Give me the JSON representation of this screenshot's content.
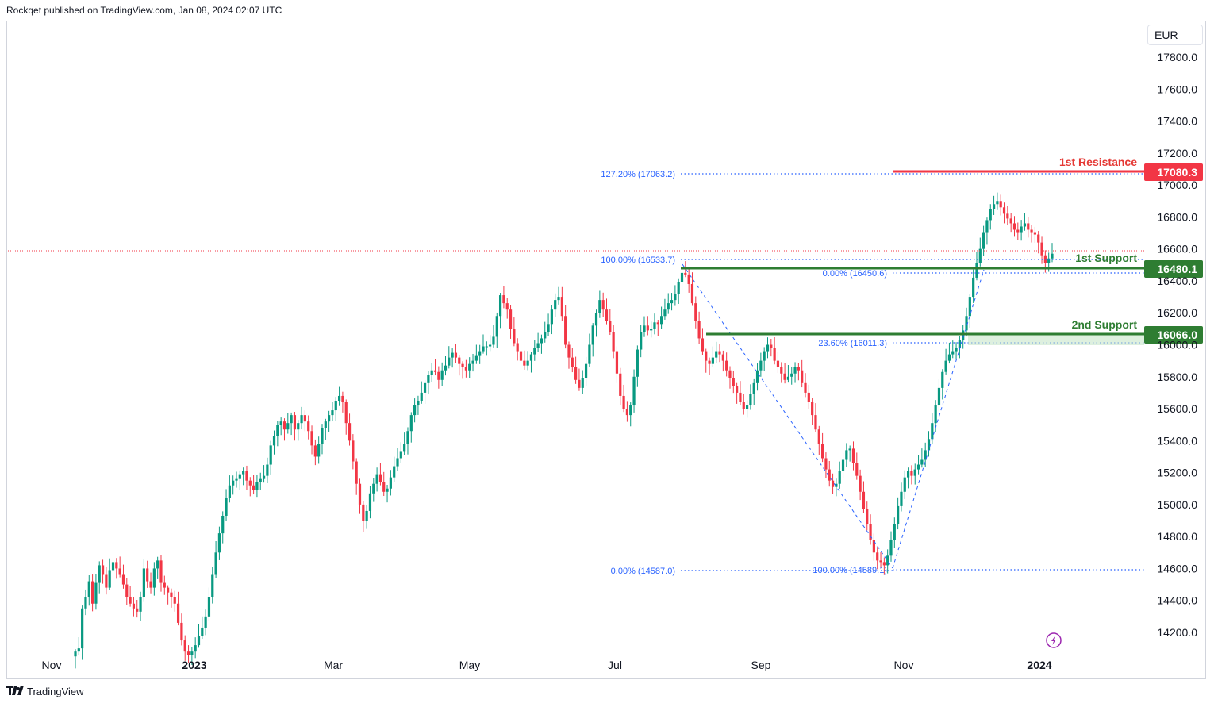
{
  "header": {
    "text": "Rockqet published on TradingView.com, Jan 08, 2024 02:07 UTC"
  },
  "footer": {
    "logo_text": "TradingView"
  },
  "currency": "EUR",
  "colors": {
    "up": "#089981",
    "down": "#f23645",
    "fib": "#2962ff",
    "resistance": "#f23645",
    "support": "#2e7d32"
  },
  "labels": {
    "resistance1": "1st Resistance",
    "resistance1_value": "17080.3",
    "support1": "1st Support",
    "support1_value": "16480.1",
    "support2": "2nd Support",
    "support2_value": "16066.0"
  },
  "fib_labels": {
    "f1": "127.20% (17063.2)",
    "f2": "100.00% (16533.7)",
    "f3": "0.00% (16450.6)",
    "f4": "23.60% (16011.3)",
    "f5": "0.00% (14587.0)",
    "f6": "100.00% (14589.1)"
  },
  "chart_data": {
    "type": "candlestick",
    "title": "",
    "xlabel": "",
    "ylabel": "",
    "ylim": [
      14050,
      17900
    ],
    "y_ticks": [
      "17800.0",
      "17600.0",
      "17400.0",
      "17200.0",
      "17000.0",
      "16800.0",
      "16600.0",
      "16400.0",
      "16200.0",
      "16000.0",
      "15800.0",
      "15600.0",
      "15400.0",
      "15200.0",
      "15000.0",
      "14800.0",
      "14600.0",
      "14400.0",
      "14200.0"
    ],
    "x_ticks": [
      "Nov",
      "2023",
      "Mar",
      "May",
      "Jul",
      "Sep",
      "Nov",
      "2024"
    ],
    "x_ticks_bold": [
      "2023",
      "2024"
    ],
    "horizontal_levels": [
      {
        "name": "1st Resistance",
        "value": 17080.3
      },
      {
        "name": "1st Support",
        "value": 16480.1
      },
      {
        "name": "2nd Support",
        "value": 16066.0
      }
    ],
    "fib_levels": [
      17063.2,
      16533.7,
      16450.6,
      16011.3,
      14587.0,
      14589.1
    ],
    "closes": [
      14080,
      14100,
      14350,
      14420,
      14520,
      14380,
      14510,
      14620,
      14560,
      14480,
      14590,
      14640,
      14600,
      14560,
      14500,
      14420,
      14380,
      14350,
      14330,
      14420,
      14600,
      14520,
      14480,
      14600,
      14650,
      14510,
      14480,
      14450,
      14420,
      14380,
      14260,
      14150,
      14080,
      14060,
      14080,
      14120,
      14180,
      14230,
      14300,
      14420,
      14560,
      14700,
      14820,
      14930,
      15040,
      15120,
      15150,
      15160,
      15190,
      15210,
      15150,
      15120,
      15090,
      15140,
      15160,
      15180,
      15250,
      15370,
      15430,
      15500,
      15520,
      15470,
      15510,
      15560,
      15470,
      15510,
      15560,
      15520,
      15460,
      15370,
      15300,
      15380,
      15480,
      15520,
      15560,
      15590,
      15650,
      15680,
      15640,
      15510,
      15400,
      15270,
      15130,
      15000,
      14900,
      14960,
      15070,
      15130,
      15190,
      15140,
      15080,
      15100,
      15170,
      15240,
      15290,
      15330,
      15380,
      15460,
      15560,
      15620,
      15650,
      15700,
      15760,
      15810,
      15840,
      15830,
      15780,
      15840,
      15870,
      15920,
      15950,
      15920,
      15880,
      15860,
      15840,
      15880,
      15900,
      15930,
      15960,
      15990,
      15990,
      16000,
      16050,
      16180,
      16310,
      16260,
      16220,
      16100,
      16010,
      15960,
      15900,
      15870,
      15900,
      15940,
      15980,
      16010,
      16040,
      16080,
      16130,
      16220,
      16280,
      16300,
      16180,
      16000,
      15920,
      15860,
      15780,
      15730,
      15790,
      15880,
      16000,
      16120,
      16200,
      16280,
      16220,
      16150,
      16080,
      15960,
      15820,
      15680,
      15600,
      15560,
      15620,
      15800,
      15970,
      16080,
      16120,
      16090,
      16100,
      16140,
      16130,
      16180,
      16220,
      16260,
      16280,
      16320,
      16390,
      16450,
      16440,
      16380,
      16260,
      16150,
      16040,
      15960,
      15900,
      15880,
      15920,
      15960,
      15940,
      15900,
      15840,
      15790,
      15740,
      15700,
      15640,
      15600,
      15620,
      15690,
      15760,
      15840,
      15900,
      15960,
      16000,
      15980,
      15900,
      15860,
      15820,
      15780,
      15800,
      15820,
      15860,
      15840,
      15760,
      15700,
      15640,
      15560,
      15470,
      15380,
      15290,
      15220,
      15150,
      15110,
      15130,
      15210,
      15280,
      15340,
      15350,
      15260,
      15180,
      15080,
      14970,
      14880,
      14780,
      14700,
      14650,
      14640,
      14620,
      14680,
      14780,
      14880,
      14990,
      15080,
      15170,
      15210,
      15180,
      15220,
      15250,
      15280,
      15340,
      15410,
      15510,
      15620,
      15730,
      15830,
      15900,
      15940,
      15960,
      15980,
      16030,
      16090,
      16180,
      16300,
      16420,
      16510,
      16600,
      16700,
      16780,
      16850,
      16880,
      16900,
      16860,
      16820,
      16790,
      16760,
      16720,
      16700,
      16740,
      16760,
      16720,
      16700,
      16690,
      16640,
      16560,
      16510,
      16540,
      16570
    ]
  }
}
